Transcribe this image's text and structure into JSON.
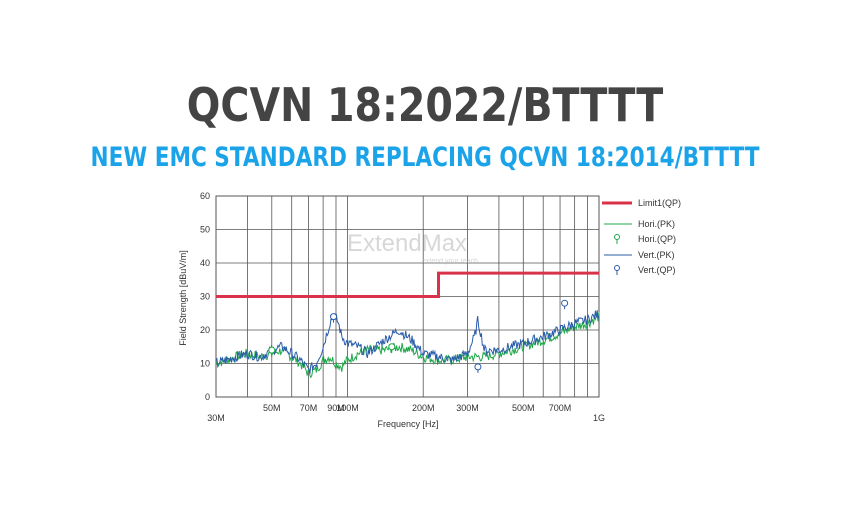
{
  "header": {
    "title": "QCVN 18:2022/BTTTT",
    "subtitle": "NEW EMC STANDARD REPLACING QCVN 18:2014/BTTTT"
  },
  "watermark": {
    "brand": "ExtendMax",
    "tagline": "extend your reach"
  },
  "chart_data": {
    "type": "line",
    "xlabel": "Frequency [Hz]",
    "ylabel": "Field Strength [dBuV/m]",
    "xscale": "log",
    "xlim": [
      30,
      1000
    ],
    "ylim": [
      0,
      60
    ],
    "yticks": [
      0,
      10,
      20,
      30,
      40,
      50,
      60
    ],
    "xticks": [
      {
        "value": 30,
        "label": "30M"
      },
      {
        "value": 50,
        "label": "50M"
      },
      {
        "value": 70,
        "label": "70M"
      },
      {
        "value": 90,
        "label": "90M"
      },
      {
        "value": 100,
        "label": "100M"
      },
      {
        "value": 200,
        "label": "200M"
      },
      {
        "value": 300,
        "label": "300M"
      },
      {
        "value": 500,
        "label": "500M"
      },
      {
        "value": 700,
        "label": "700M"
      },
      {
        "value": 1000,
        "label": "1G"
      }
    ],
    "grid": true,
    "legend_position": "right",
    "series": [
      {
        "name": "Limit1(QP)",
        "color": "#d9334a",
        "style": "step",
        "x": [
          30,
          230,
          230,
          1000
        ],
        "y": [
          30,
          30,
          37,
          37
        ]
      },
      {
        "name": "Hori.(PK)",
        "color": "#1fa84a",
        "x": [
          30,
          33,
          36,
          40,
          45,
          50,
          55,
          60,
          65,
          70,
          75,
          80,
          85,
          90,
          95,
          100,
          110,
          120,
          140,
          160,
          180,
          200,
          230,
          260,
          300,
          350,
          400,
          500,
          600,
          700,
          800,
          900,
          1000
        ],
        "y": [
          10,
          11,
          12,
          13,
          12,
          13,
          14,
          12,
          10,
          7,
          8,
          11,
          12,
          10,
          9,
          11,
          13,
          14,
          14,
          15,
          14,
          12,
          11,
          11,
          12,
          12,
          13,
          15,
          17,
          19,
          21,
          22,
          24
        ]
      },
      {
        "name": "Vert.(PK)",
        "color": "#2a5caa",
        "x": [
          30,
          33,
          36,
          40,
          45,
          50,
          55,
          60,
          65,
          70,
          75,
          80,
          85,
          88,
          92,
          95,
          100,
          110,
          120,
          140,
          160,
          180,
          200,
          230,
          260,
          300,
          320,
          330,
          350,
          400,
          500,
          600,
          700,
          800,
          900,
          1000
        ],
        "y": [
          10,
          11,
          12,
          13,
          12,
          14,
          15,
          13,
          11,
          8,
          10,
          15,
          22,
          25,
          22,
          18,
          16,
          15,
          13,
          17,
          20,
          17,
          13,
          12,
          11,
          13,
          18,
          23,
          14,
          14,
          16,
          18,
          20,
          22,
          23,
          25
        ]
      }
    ],
    "markers": [
      {
        "name": "Hori.(QP)",
        "color": "#1fa84a",
        "points": [
          {
            "x": 50,
            "y": 14
          },
          {
            "x": 150,
            "y": 15
          }
        ]
      },
      {
        "name": "Vert.(QP)",
        "color": "#2a5caa",
        "points": [
          {
            "x": 88,
            "y": 24
          },
          {
            "x": 330,
            "y": 9
          },
          {
            "x": 730,
            "y": 28
          }
        ]
      }
    ]
  }
}
